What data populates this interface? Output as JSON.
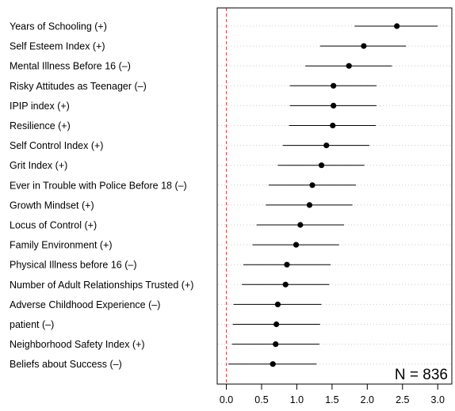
{
  "chart_data": {
    "type": "scatter",
    "subtype": "forest-plot",
    "annotation": "N = 836",
    "x_ticks": [
      0.0,
      0.5,
      1.0,
      1.5,
      2.0,
      2.5,
      3.0
    ],
    "x_tick_labels": [
      "0.0",
      "0.5",
      "1.0",
      "1.5",
      "2.0",
      "2.5",
      "3.0"
    ],
    "xlim": [
      -0.13,
      3.2
    ],
    "reference_line": {
      "x": 0,
      "style": "dashed",
      "color": "#e03c3c"
    },
    "grid": "horizontal dotted",
    "colors": {
      "point": "#000000",
      "interval": "#000000",
      "grid": "#cccccc",
      "frame": "#000000"
    },
    "items": [
      {
        "label": "Years of Schooling (+)",
        "estimate": 2.42,
        "lower": 1.82,
        "upper": 3.0
      },
      {
        "label": "Self Esteem Index (+)",
        "estimate": 1.95,
        "lower": 1.33,
        "upper": 2.55
      },
      {
        "label": "Mental Illness Before 16 (–)",
        "estimate": 1.74,
        "lower": 1.12,
        "upper": 2.35
      },
      {
        "label": "Risky Attitudes as Teenager (–)",
        "estimate": 1.52,
        "lower": 0.9,
        "upper": 2.13
      },
      {
        "label": "IPIP index (+)",
        "estimate": 1.52,
        "lower": 0.9,
        "upper": 2.13
      },
      {
        "label": "Resilience (+)",
        "estimate": 1.51,
        "lower": 0.89,
        "upper": 2.12
      },
      {
        "label": "Self Control Index (+)",
        "estimate": 1.42,
        "lower": 0.8,
        "upper": 2.03
      },
      {
        "label": "Grit Index (+)",
        "estimate": 1.35,
        "lower": 0.73,
        "upper": 1.96
      },
      {
        "label": "Ever in Trouble with Police Before 18 (–)",
        "estimate": 1.22,
        "lower": 0.6,
        "upper": 1.84
      },
      {
        "label": "Growth Mindset (+)",
        "estimate": 1.18,
        "lower": 0.56,
        "upper": 1.79
      },
      {
        "label": "Locus of Control (+)",
        "estimate": 1.05,
        "lower": 0.43,
        "upper": 1.67
      },
      {
        "label": "Family Environment (+)",
        "estimate": 0.99,
        "lower": 0.37,
        "upper": 1.6
      },
      {
        "label": "Physical Illness before 16 (–)",
        "estimate": 0.86,
        "lower": 0.24,
        "upper": 1.48
      },
      {
        "label": "Number of Adult Relationships Trusted (+)",
        "estimate": 0.84,
        "lower": 0.22,
        "upper": 1.46
      },
      {
        "label": "Adverse Childhood Experience (–)",
        "estimate": 0.73,
        "lower": 0.1,
        "upper": 1.35
      },
      {
        "label": "patient (–)",
        "estimate": 0.71,
        "lower": 0.09,
        "upper": 1.33
      },
      {
        "label": "Neighborhood Safety Index (+)",
        "estimate": 0.7,
        "lower": 0.08,
        "upper": 1.32
      },
      {
        "label": "Beliefs about Success (–)",
        "estimate": 0.66,
        "lower": 0.03,
        "upper": 1.28
      }
    ]
  }
}
